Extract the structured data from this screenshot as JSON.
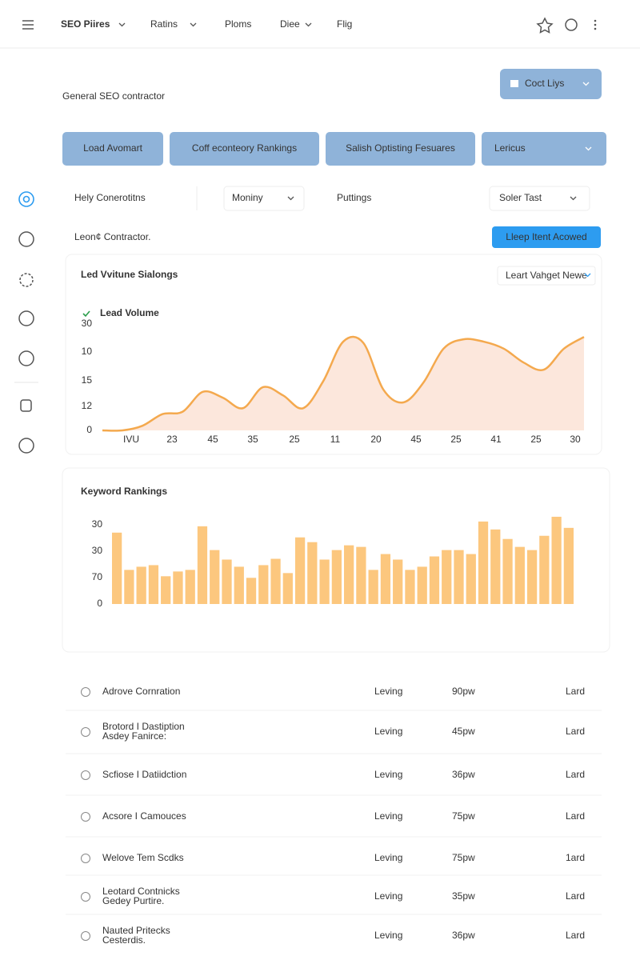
{
  "nav": {
    "brand": "SEO Piires",
    "items": [
      "Ratins",
      "Ploms",
      "Diee",
      "Flig"
    ]
  },
  "header_button": "Coct Liys",
  "page_title": "General SEO contractor",
  "tabs": [
    "Load Avomart",
    "Coff econteory Rankings",
    "Salish Optisting Fesuares",
    "Lericus"
  ],
  "filters": [
    "Hely Conerotitns",
    "Moniny",
    "Puttings",
    "Soler Tast"
  ],
  "subheader": {
    "text": "Leon¢ Contractor.",
    "button": "Lleep Itent Acowed"
  },
  "line_chart": {
    "type": "line",
    "title": "Led Vvitune Sialongs",
    "link": "Leart Vahget Newe",
    "legend": "Lead Volume",
    "color": "#f4a94e",
    "area_color": "#fbe1d3",
    "y_labels": [
      "30",
      "10",
      "15",
      "12",
      "0"
    ],
    "x_labels": [
      "IVU",
      "23",
      "45",
      "35",
      "25",
      "11",
      "20",
      "45",
      "25",
      "41",
      "25",
      "30"
    ],
    "ylim": [
      0,
      100
    ],
    "values": [
      0,
      0,
      4,
      14,
      16,
      33,
      28,
      19,
      37,
      30,
      19,
      42,
      76,
      75,
      35,
      24,
      41,
      70,
      78,
      76,
      70,
      58,
      52,
      70,
      80
    ]
  },
  "bar_chart": {
    "type": "bar",
    "title": "Keyword Rankings",
    "color": "#fcc77e",
    "y_labels": [
      "30",
      "30",
      "70",
      "0"
    ],
    "ylim": [
      0,
      115
    ],
    "values": [
      90,
      43,
      47,
      49,
      35,
      41,
      43,
      98,
      68,
      56,
      47,
      33,
      49,
      57,
      39,
      84,
      78,
      56,
      68,
      74,
      72,
      43,
      63,
      56,
      43,
      47,
      60,
      68,
      68,
      63,
      104,
      94,
      82,
      72,
      68,
      86,
      110,
      96
    ]
  },
  "table": {
    "rows": [
      {
        "name": [
          "Adrove Cornration"
        ],
        "status": "Leving",
        "value": "90pw",
        "action": "Lard"
      },
      {
        "name": [
          "Brotord I Dastiption",
          "Asdey Fanirce:"
        ],
        "status": "Leving",
        "value": "45pw",
        "action": "Lard"
      },
      {
        "name": [
          "Scfiose I Datiidction"
        ],
        "status": "Leving",
        "value": "36pw",
        "action": "Lard"
      },
      {
        "name": [
          "Acsore I Camouces"
        ],
        "status": "Leving",
        "value": "75pw",
        "action": "Lard"
      },
      {
        "name": [
          "Welove Tem Scdks"
        ],
        "status": "Leving",
        "value": "75pw",
        "action": "1ard"
      },
      {
        "name": [
          "Leotard Contnicks",
          "Gedey Purtire."
        ],
        "status": "Leving",
        "value": "35pw",
        "action": "Lard"
      },
      {
        "name": [
          "Nauted Pritecks",
          "Cesterdis."
        ],
        "status": "Leving",
        "value": "36pw",
        "action": "Lard"
      }
    ]
  }
}
